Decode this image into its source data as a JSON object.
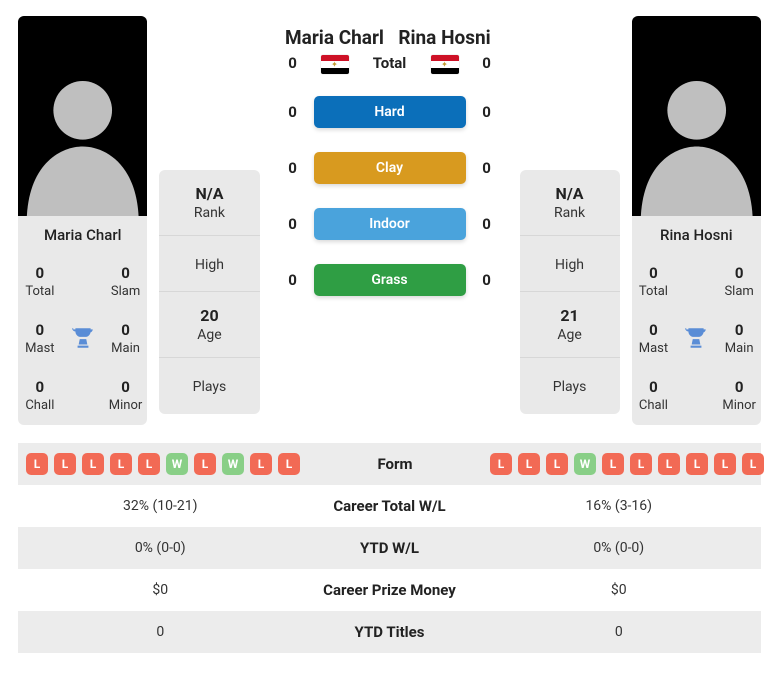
{
  "colors": {
    "hard": "#0b6fba",
    "clay": "#d89a1f",
    "indoor": "#4aa3dc",
    "grass": "#2f9e44",
    "win": "#89cf87",
    "loss": "#f26a55",
    "trophy": "#5a8dd6"
  },
  "player1": {
    "name": "Maria Charl",
    "flag": "egypt",
    "titles": {
      "total": "0",
      "slam": "0",
      "mast": "0",
      "main": "0",
      "chall": "0",
      "minor": "0"
    },
    "meta": {
      "rank": "N/A",
      "high": "",
      "age": "20",
      "plays": ""
    }
  },
  "player2": {
    "name": "Rina Hosni",
    "flag": "egypt",
    "titles": {
      "total": "0",
      "slam": "0",
      "mast": "0",
      "main": "0",
      "chall": "0",
      "minor": "0"
    },
    "meta": {
      "rank": "N/A",
      "high": "",
      "age": "21",
      "plays": ""
    }
  },
  "h2h": {
    "rows": [
      {
        "label": "Total",
        "p1": "0",
        "p2": "0",
        "kind": "plain"
      },
      {
        "label": "Hard",
        "p1": "0",
        "p2": "0",
        "kind": "pill",
        "colorKey": "hard"
      },
      {
        "label": "Clay",
        "p1": "0",
        "p2": "0",
        "kind": "pill",
        "colorKey": "clay"
      },
      {
        "label": "Indoor",
        "p1": "0",
        "p2": "0",
        "kind": "pill",
        "colorKey": "indoor"
      },
      {
        "label": "Grass",
        "p1": "0",
        "p2": "0",
        "kind": "pill",
        "colorKey": "grass"
      }
    ]
  },
  "labels": {
    "rank": "Rank",
    "high": "High",
    "age": "Age",
    "plays": "Plays",
    "total": "Total",
    "slam": "Slam",
    "mast": "Mast",
    "main": "Main",
    "chall": "Chall",
    "minor": "Minor"
  },
  "stats": {
    "rows": [
      {
        "label": "Form",
        "kind": "form"
      },
      {
        "label": "Career Total W/L",
        "p1": "32% (10-21)",
        "p2": "16% (3-16)"
      },
      {
        "label": "YTD W/L",
        "p1": "0% (0-0)",
        "p2": "0% (0-0)"
      },
      {
        "label": "Career Prize Money",
        "p1": "$0",
        "p2": "$0"
      },
      {
        "label": "YTD Titles",
        "p1": "0",
        "p2": "0"
      }
    ],
    "form": {
      "p1": [
        "L",
        "L",
        "L",
        "L",
        "L",
        "W",
        "L",
        "W",
        "L",
        "L"
      ],
      "p2": [
        "L",
        "L",
        "L",
        "W",
        "L",
        "L",
        "L",
        "L",
        "L",
        "L"
      ]
    }
  }
}
